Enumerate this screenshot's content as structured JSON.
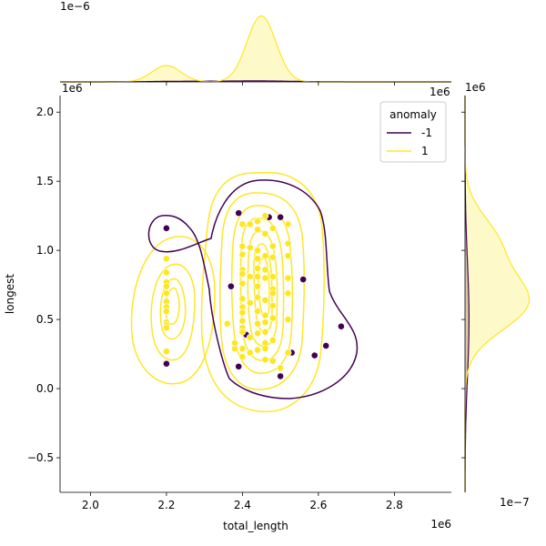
{
  "chart_data": {
    "type": "scatter",
    "title": "",
    "xlabel": "total_length",
    "ylabel": "longest",
    "xlim": [
      1920000,
      2950000
    ],
    "ylim": [
      -750000,
      2120000
    ],
    "x_ticks": [
      2000000,
      2200000,
      2400000,
      2600000,
      2800000
    ],
    "x_tick_labels": [
      "2.0",
      "2.2",
      "2.4",
      "2.6",
      "2.8"
    ],
    "y_ticks": [
      -500000,
      0,
      500000,
      1000000,
      1500000,
      2000000
    ],
    "y_tick_labels": [
      "−0.5",
      "0.0",
      "0.5",
      "1.0",
      "1.5",
      "2.0"
    ],
    "x_offset_text": "1e6",
    "y_offset_text": "1e6",
    "top_marginal_offset_text": "1e−6",
    "top_marginal_axis_offset_text": "1e6",
    "right_marginal_offset_text": "1e6",
    "right_marginal_bottom_offset_text": "1e−7",
    "legend": {
      "title": "anomaly",
      "position": "top-right"
    },
    "colors": {
      "normal": "#fde725",
      "anomaly": "#440154"
    },
    "series": [
      {
        "name": "-1",
        "color": "#440154",
        "points": [
          [
            2200000,
            1160000
          ],
          [
            2200000,
            180000
          ],
          [
            2390000,
            1270000
          ],
          [
            2470000,
            1240000
          ],
          [
            2500000,
            1240000
          ],
          [
            2370000,
            740000
          ],
          [
            2560000,
            790000
          ],
          [
            2410000,
            390000
          ],
          [
            2390000,
            160000
          ],
          [
            2500000,
            90000
          ],
          [
            2530000,
            260000
          ],
          [
            2590000,
            240000
          ],
          [
            2620000,
            310000
          ],
          [
            2660000,
            450000
          ]
        ]
      },
      {
        "name": "1",
        "color": "#fde725",
        "points": [
          [
            2200000,
            940000
          ],
          [
            2200000,
            840000
          ],
          [
            2200000,
            770000
          ],
          [
            2200000,
            740000
          ],
          [
            2200000,
            690000
          ],
          [
            2200000,
            630000
          ],
          [
            2200000,
            590000
          ],
          [
            2200000,
            560000
          ],
          [
            2200000,
            480000
          ],
          [
            2200000,
            460000
          ],
          [
            2200000,
            440000
          ],
          [
            2200000,
            270000
          ],
          [
            2400000,
            1190000
          ],
          [
            2400000,
            1030000
          ],
          [
            2400000,
            970000
          ],
          [
            2400000,
            860000
          ],
          [
            2400000,
            830000
          ],
          [
            2400000,
            760000
          ],
          [
            2400000,
            650000
          ],
          [
            2400000,
            590000
          ],
          [
            2400000,
            550000
          ],
          [
            2400000,
            490000
          ],
          [
            2400000,
            440000
          ],
          [
            2400000,
            410000
          ],
          [
            2400000,
            290000
          ],
          [
            2400000,
            230000
          ],
          [
            2420000,
            1190000
          ],
          [
            2420000,
            1020000
          ],
          [
            2420000,
            810000
          ],
          [
            2420000,
            620000
          ],
          [
            2420000,
            370000
          ],
          [
            2420000,
            260000
          ],
          [
            2440000,
            1210000
          ],
          [
            2440000,
            1150000
          ],
          [
            2440000,
            1000000
          ],
          [
            2440000,
            940000
          ],
          [
            2440000,
            870000
          ],
          [
            2440000,
            810000
          ],
          [
            2440000,
            740000
          ],
          [
            2440000,
            660000
          ],
          [
            2440000,
            560000
          ],
          [
            2440000,
            470000
          ],
          [
            2440000,
            400000
          ],
          [
            2440000,
            280000
          ],
          [
            2460000,
            1250000
          ],
          [
            2460000,
            1120000
          ],
          [
            2460000,
            960000
          ],
          [
            2460000,
            860000
          ],
          [
            2460000,
            800000
          ],
          [
            2460000,
            640000
          ],
          [
            2460000,
            530000
          ],
          [
            2460000,
            480000
          ],
          [
            2460000,
            410000
          ],
          [
            2460000,
            330000
          ],
          [
            2460000,
            290000
          ],
          [
            2460000,
            210000
          ],
          [
            2480000,
            1160000
          ],
          [
            2480000,
            1030000
          ],
          [
            2480000,
            950000
          ],
          [
            2480000,
            810000
          ],
          [
            2480000,
            720000
          ],
          [
            2480000,
            690000
          ],
          [
            2480000,
            600000
          ],
          [
            2480000,
            510000
          ],
          [
            2480000,
            350000
          ],
          [
            2480000,
            200000
          ],
          [
            2520000,
            1190000
          ],
          [
            2520000,
            1050000
          ],
          [
            2520000,
            960000
          ],
          [
            2520000,
            800000
          ],
          [
            2520000,
            690000
          ],
          [
            2520000,
            500000
          ],
          [
            2520000,
            260000
          ],
          [
            2500000,
            150000
          ],
          [
            2360000,
            470000
          ],
          [
            2380000,
            290000
          ],
          [
            2380000,
            330000
          ]
        ]
      }
    ],
    "top_marginal": {
      "axis": "total_length",
      "series": [
        {
          "name": "-1",
          "color": "#440154",
          "peaks": [
            [
              2450000,
              0.03
            ],
            [
              2250000,
              0.02
            ]
          ]
        },
        {
          "name": "1",
          "color": "#fde725",
          "peaks": [
            [
              2200000,
              0.53
            ],
            [
              2450000,
              2.13
            ]
          ]
        }
      ]
    },
    "right_marginal": {
      "axis": "longest",
      "series": [
        {
          "name": "-1",
          "color": "#440154",
          "peaks": [
            [
              500000,
              0.5
            ]
          ]
        },
        {
          "name": "1",
          "color": "#fde725",
          "peaks": [
            [
              1050000,
              3.9
            ],
            [
              620000,
              7.6
            ]
          ]
        }
      ]
    }
  }
}
